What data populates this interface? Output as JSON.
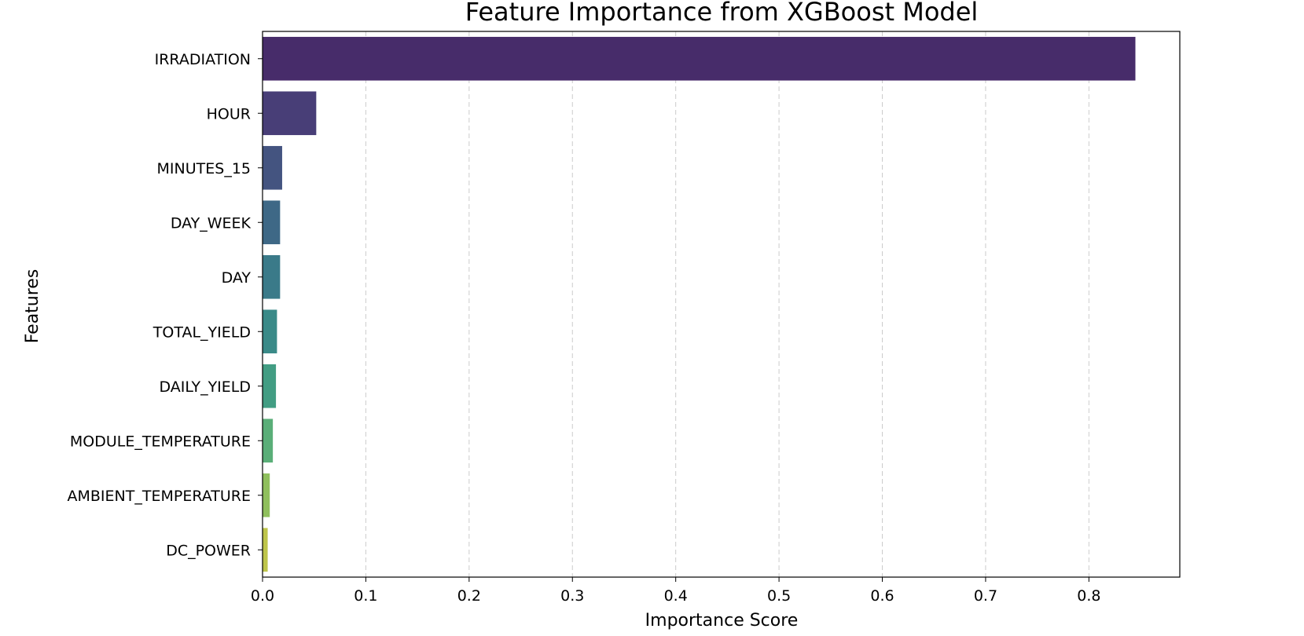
{
  "chart_data": {
    "type": "bar",
    "orientation": "horizontal",
    "title": "Feature Importance from XGBoost Model",
    "xlabel": "Importance Score",
    "ylabel": "Features",
    "xlim": [
      0,
      0.888
    ],
    "xticks": [
      "0.0",
      "0.1",
      "0.2",
      "0.3",
      "0.4",
      "0.5",
      "0.6",
      "0.7",
      "0.8"
    ],
    "grid": "x-dashed",
    "categories": [
      "IRRADIATION",
      "HOUR",
      "MINUTES_15",
      "DAY_WEEK",
      "DAY",
      "TOTAL_YIELD",
      "DAILY_YIELD",
      "MODULE_TEMPERATURE",
      "AMBIENT_TEMPERATURE",
      "DC_POWER"
    ],
    "values": [
      0.845,
      0.052,
      0.019,
      0.017,
      0.017,
      0.014,
      0.013,
      0.01,
      0.007,
      0.005
    ],
    "colors": [
      "#472c6a",
      "#483e77",
      "#445480",
      "#3e6886",
      "#3a7a89",
      "#3a8a88",
      "#429d83",
      "#5aae78",
      "#8fbf5d",
      "#bec54a"
    ]
  }
}
